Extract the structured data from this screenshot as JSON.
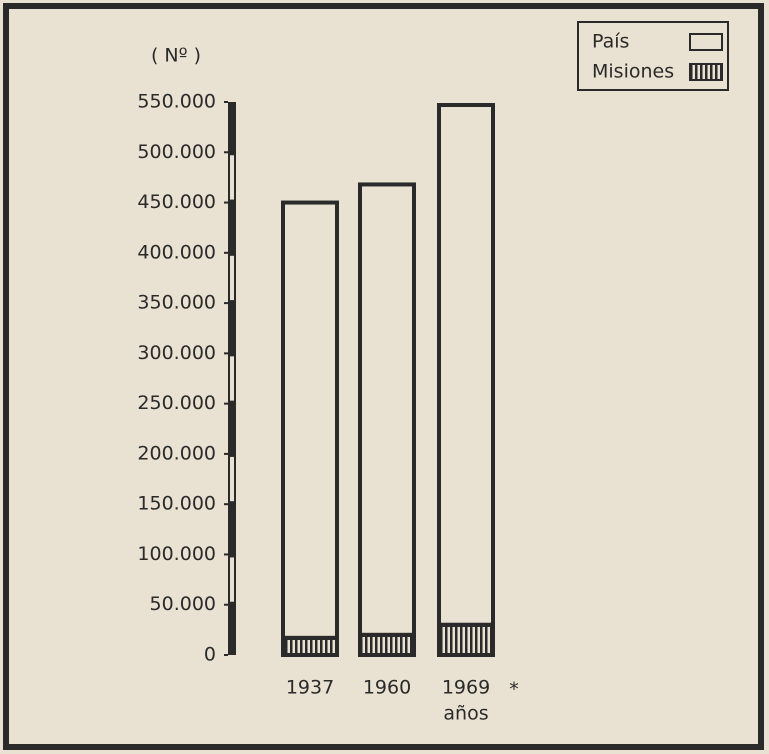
{
  "chart_data": {
    "type": "stacked_bar",
    "y_label": "( Nº )",
    "x_label": "años",
    "annotation": "*",
    "categories": [
      "1937",
      "1960",
      "1969"
    ],
    "series": [
      {
        "name": "Misiones",
        "color": "#2a2a2a",
        "values": [
          17000,
          20000,
          30000
        ]
      },
      {
        "name": "País",
        "color": "#2a2a2a",
        "values": [
          433000,
          448000,
          517000
        ]
      }
    ],
    "ylim": [
      0,
      550000
    ],
    "yticks": [
      0,
      {
        "value": 50000,
        "label": "50.000"
      },
      {
        "value": 100000,
        "label": "100.000"
      },
      {
        "value": 150000,
        "label": "150.000"
      },
      {
        "value": 200000,
        "label": "200.000"
      },
      {
        "value": 250000,
        "label": "250.000"
      },
      {
        "value": 300000,
        "label": "300.000"
      },
      {
        "value": 350000,
        "label": "350.000"
      },
      {
        "value": 400000,
        "label": "400.000"
      },
      {
        "value": 450000,
        "label": "450.000"
      },
      {
        "value": 500000,
        "label": "500.000"
      },
      {
        "value": 550000,
        "label": "550.000"
      }
    ],
    "legend": "top-right",
    "grid": false
  }
}
